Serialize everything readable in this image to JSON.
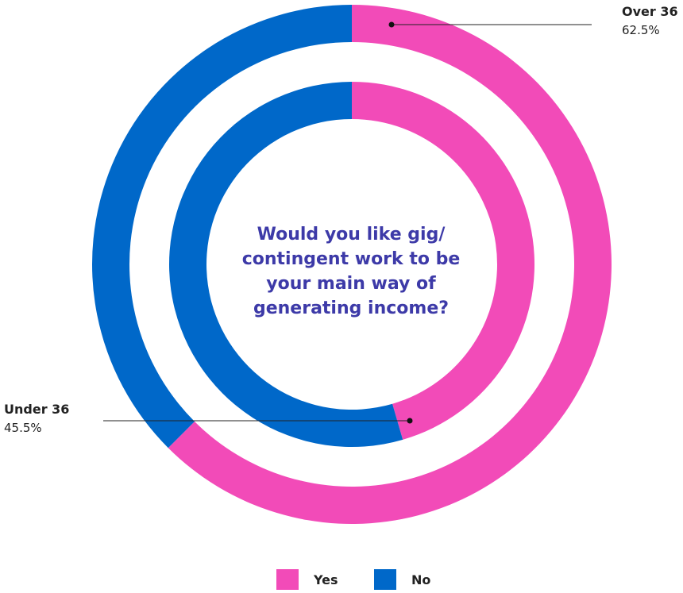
{
  "chart_data": {
    "type": "donut",
    "title": "Would you like gig/ contingent work to be your main way of generating income?",
    "categories": [
      "Over 36",
      "Under 36"
    ],
    "series": [
      {
        "name": "Yes",
        "color": "#f24bb8",
        "values": [
          62.5,
          45.5
        ],
        "value_labels": [
          "62.5%",
          "45.5%"
        ]
      },
      {
        "name": "No",
        "color": "#0068c9",
        "values": [
          37.5,
          54.5
        ]
      }
    ],
    "legend": "bottom"
  }
}
